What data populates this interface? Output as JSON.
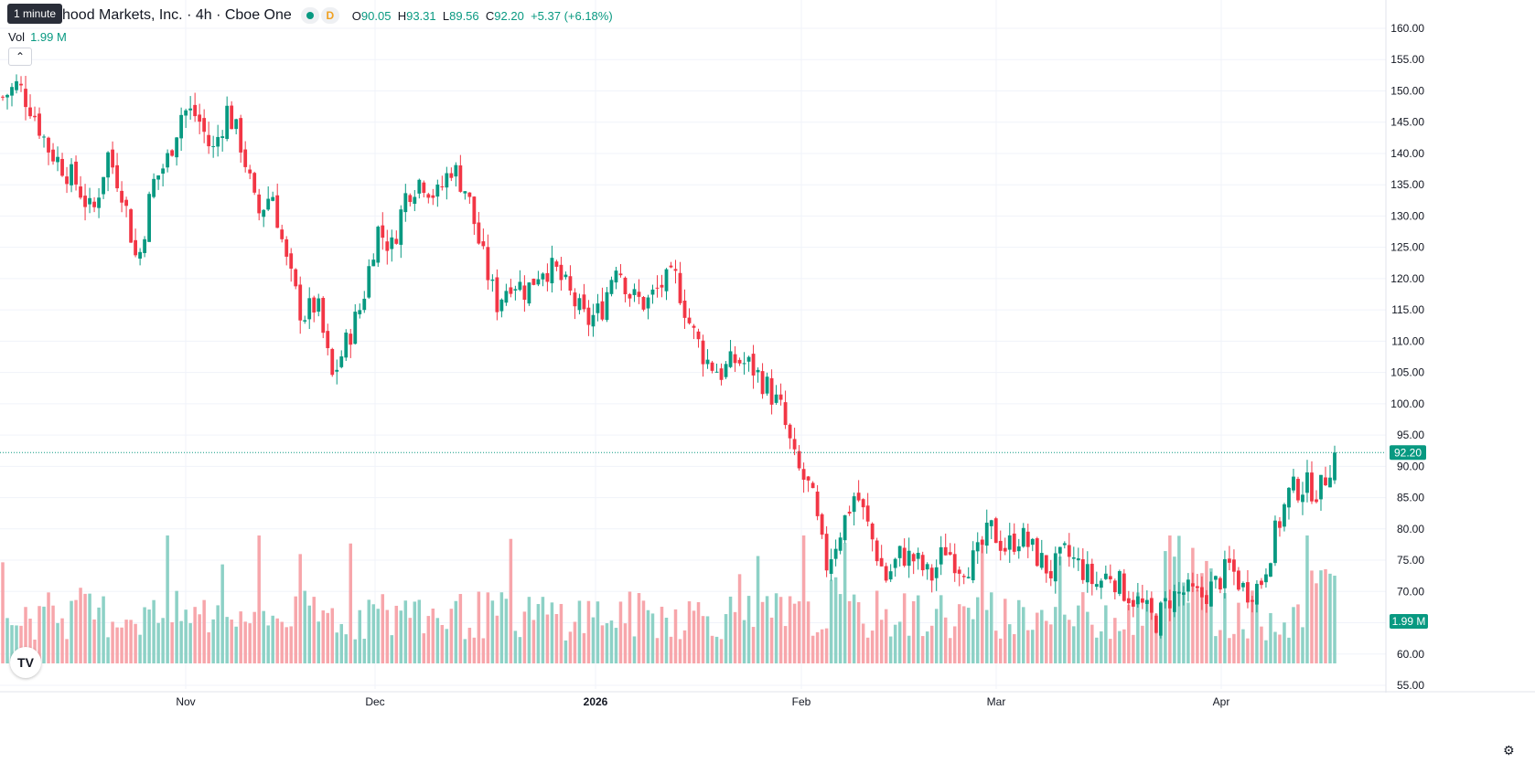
{
  "legend": {
    "title": "hood Markets, Inc. · 4h · Cboe One",
    "open_label": "O",
    "open": "90.05",
    "high_label": "H",
    "high": "93.31",
    "low_label": "L",
    "low": "89.56",
    "close_label": "C",
    "close": "92.20",
    "change": "+5.37 (+6.18%)",
    "d_badge": "D"
  },
  "volume": {
    "label": "Vol",
    "value": "1.99 M"
  },
  "tooltip": "1 minute",
  "price_badge": "92.20",
  "volume_badge": "1.99 M",
  "logo_text": "TV",
  "colors": {
    "up": "#089981",
    "down": "#f23645",
    "vol_up": "#8dd1c6",
    "vol_down": "#f7a6ab"
  },
  "icons": {
    "collapse": "chevron-up-icon",
    "logo": "tradingview-logo-icon",
    "settings": "gear-icon"
  },
  "chart_data": {
    "type": "candlestick",
    "y_axis": {
      "min": 55,
      "max": 160,
      "ticks": [
        "160.00",
        "155.00",
        "150.00",
        "145.00",
        "140.00",
        "135.00",
        "130.00",
        "125.00",
        "120.00",
        "115.00",
        "110.00",
        "105.00",
        "100.00",
        "95.00",
        "90.00",
        "85.00",
        "80.00",
        "75.00",
        "70.00",
        "65.00",
        "60.00",
        "55.00"
      ]
    },
    "x_axis": {
      "labels": [
        "Nov",
        "Dec",
        "2026",
        "Feb",
        "Mar",
        "Apr"
      ]
    },
    "last_price": 92.2,
    "close_path": [
      {
        "c": 149,
        "s": "up"
      },
      {
        "c": 151,
        "s": "up"
      },
      {
        "c": 147,
        "s": "down"
      },
      {
        "c": 141,
        "s": "down"
      },
      {
        "c": 138,
        "s": "down"
      },
      {
        "c": 135,
        "s": "down"
      },
      {
        "c": 130,
        "s": "down"
      },
      {
        "c": 140,
        "s": "up"
      },
      {
        "c": 134,
        "s": "down"
      },
      {
        "c": 122,
        "s": "down"
      },
      {
        "c": 135,
        "s": "up"
      },
      {
        "c": 139,
        "s": "up"
      },
      {
        "c": 147,
        "s": "up"
      },
      {
        "c": 146,
        "s": "up"
      },
      {
        "c": 140,
        "s": "down"
      },
      {
        "c": 147,
        "s": "up"
      },
      {
        "c": 141,
        "s": "down"
      },
      {
        "c": 130,
        "s": "down"
      },
      {
        "c": 134,
        "s": "up"
      },
      {
        "c": 122,
        "s": "down"
      },
      {
        "c": 114,
        "s": "down"
      },
      {
        "c": 116,
        "s": "up"
      },
      {
        "c": 104,
        "s": "down"
      },
      {
        "c": 110,
        "s": "up"
      },
      {
        "c": 116,
        "s": "up"
      },
      {
        "c": 128,
        "s": "up"
      },
      {
        "c": 125,
        "s": "down"
      },
      {
        "c": 134,
        "s": "up"
      },
      {
        "c": 136,
        "s": "up"
      },
      {
        "c": 133,
        "s": "down"
      },
      {
        "c": 138,
        "s": "up"
      },
      {
        "c": 134,
        "s": "down"
      },
      {
        "c": 124,
        "s": "down"
      },
      {
        "c": 116,
        "s": "down"
      },
      {
        "c": 120,
        "s": "up"
      },
      {
        "c": 118,
        "s": "down"
      },
      {
        "c": 122,
        "s": "up"
      },
      {
        "c": 121,
        "s": "up"
      },
      {
        "c": 117,
        "s": "down"
      },
      {
        "c": 113,
        "s": "down"
      },
      {
        "c": 115,
        "s": "up"
      },
      {
        "c": 123,
        "s": "up"
      },
      {
        "c": 117,
        "s": "down"
      },
      {
        "c": 116,
        "s": "down"
      },
      {
        "c": 119,
        "s": "up"
      },
      {
        "c": 120,
        "s": "up"
      },
      {
        "c": 112,
        "s": "down"
      },
      {
        "c": 107,
        "s": "down"
      },
      {
        "c": 105,
        "s": "up"
      },
      {
        "c": 107,
        "s": "up"
      },
      {
        "c": 106,
        "s": "down"
      },
      {
        "c": 103,
        "s": "down"
      },
      {
        "c": 99,
        "s": "down"
      },
      {
        "c": 90,
        "s": "down"
      },
      {
        "c": 86,
        "s": "down"
      },
      {
        "c": 74,
        "s": "down"
      },
      {
        "c": 80,
        "s": "up"
      },
      {
        "c": 86,
        "s": "up"
      },
      {
        "c": 79,
        "s": "down"
      },
      {
        "c": 72,
        "s": "down"
      },
      {
        "c": 76,
        "s": "up"
      },
      {
        "c": 75,
        "s": "down"
      },
      {
        "c": 72,
        "s": "down"
      },
      {
        "c": 77,
        "s": "up"
      },
      {
        "c": 74,
        "s": "down"
      },
      {
        "c": 75,
        "s": "up"
      },
      {
        "c": 80,
        "s": "up"
      },
      {
        "c": 77,
        "s": "down"
      },
      {
        "c": 79,
        "s": "up"
      },
      {
        "c": 76,
        "s": "down"
      },
      {
        "c": 73,
        "s": "down"
      },
      {
        "c": 76,
        "s": "up"
      },
      {
        "c": 74,
        "s": "down"
      },
      {
        "c": 71,
        "s": "down"
      },
      {
        "c": 73,
        "s": "up"
      },
      {
        "c": 70,
        "s": "down"
      },
      {
        "c": 68,
        "s": "down"
      },
      {
        "c": 65,
        "s": "down"
      },
      {
        "c": 69,
        "s": "up"
      },
      {
        "c": 70,
        "s": "up"
      },
      {
        "c": 69,
        "s": "down"
      },
      {
        "c": 71,
        "s": "up"
      },
      {
        "c": 74,
        "s": "down"
      },
      {
        "c": 70,
        "s": "down"
      },
      {
        "c": 71,
        "s": "up"
      },
      {
        "c": 79,
        "s": "up"
      },
      {
        "c": 86,
        "s": "up"
      },
      {
        "c": 87,
        "s": "down"
      },
      {
        "c": 86,
        "s": "up"
      },
      {
        "c": 92.2,
        "s": "up"
      }
    ]
  }
}
